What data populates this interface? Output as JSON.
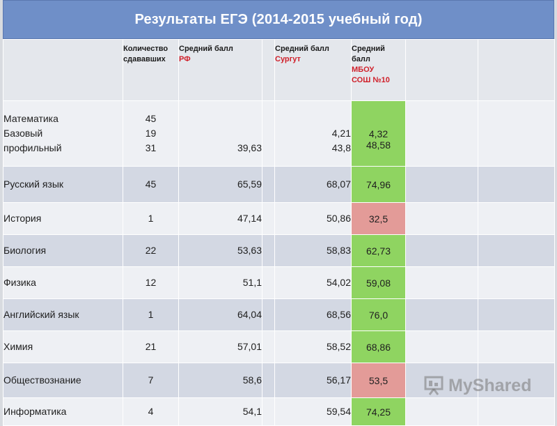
{
  "title": "Результаты ЕГЭ (2014-2015 учебный год)",
  "headers": {
    "count": [
      "Количество",
      "сдававших"
    ],
    "rf": [
      "Средний балл",
      "РФ"
    ],
    "surgut": [
      "Средний балл",
      "Сургут"
    ],
    "school": [
      "Средний",
      "балл",
      "МБОУ",
      "СОШ №10"
    ]
  },
  "rows": [
    {
      "subject": [
        "Математика",
        "Базовый",
        "профильный"
      ],
      "count": [
        "45",
        "19",
        "31"
      ],
      "rf": [
        "",
        "",
        "39,63"
      ],
      "surgut": [
        "",
        "4,21",
        "43,8"
      ],
      "school": [
        "",
        "4,32",
        "48,58"
      ],
      "school_status": "green"
    },
    {
      "subject": [
        "Русский язык"
      ],
      "count": [
        "45"
      ],
      "rf": [
        "65,59"
      ],
      "surgut": [
        "68,07"
      ],
      "school": [
        "74,96"
      ],
      "school_status": "green"
    },
    {
      "subject": [
        "История"
      ],
      "count": [
        "1"
      ],
      "rf": [
        "47,14"
      ],
      "surgut": [
        "50,86"
      ],
      "school": [
        "32,5"
      ],
      "school_status": "pink"
    },
    {
      "subject": [
        "Биология"
      ],
      "count": [
        "22"
      ],
      "rf": [
        "53,63"
      ],
      "surgut": [
        "58,83"
      ],
      "school": [
        "62,73"
      ],
      "school_status": "green"
    },
    {
      "subject": [
        "Физика"
      ],
      "count": [
        "12"
      ],
      "rf": [
        "51,1"
      ],
      "surgut": [
        "54,02"
      ],
      "school": [
        "59,08"
      ],
      "school_status": "green"
    },
    {
      "subject": [
        "Английский язык"
      ],
      "count": [
        "1"
      ],
      "rf": [
        "64,04"
      ],
      "surgut": [
        "68,56"
      ],
      "school": [
        "76,0"
      ],
      "school_status": "green"
    },
    {
      "subject": [
        "Химия"
      ],
      "count": [
        "21"
      ],
      "rf": [
        "57,01"
      ],
      "surgut": [
        "58,52"
      ],
      "school": [
        "68,86"
      ],
      "school_status": "green"
    },
    {
      "subject": [
        "Обществознание"
      ],
      "count": [
        "7"
      ],
      "rf": [
        "58,6"
      ],
      "surgut": [
        "56,17"
      ],
      "school": [
        "53,5"
      ],
      "school_status": "pink"
    },
    {
      "subject": [
        "Информатика"
      ],
      "count": [
        "4"
      ],
      "rf": [
        "54,1"
      ],
      "surgut": [
        "59,54"
      ],
      "school": [
        "74,25"
      ],
      "school_status": "green"
    }
  ],
  "colors": {
    "green": "#8fd461",
    "pink": "#e39b98",
    "title_bg": "#6f8fc8"
  },
  "watermark": {
    "text": "MyShared",
    "icon": "presentation-board-icon"
  }
}
